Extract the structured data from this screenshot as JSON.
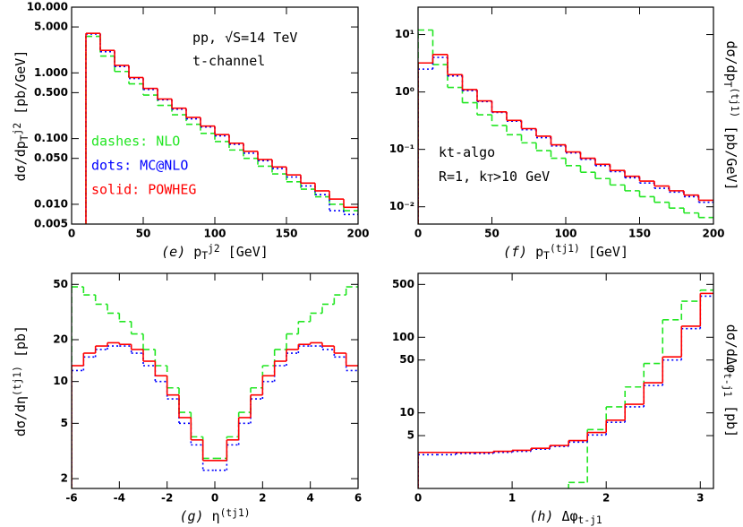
{
  "chart_data": [
    {
      "type": "histogram",
      "log_y": true,
      "legend": "lower left",
      "y_label_side": "left",
      "x_label": [
        {
          "text": "(e)",
          "style": "italic"
        },
        {
          "text": " p"
        },
        {
          "text": "T",
          "pos": "sub"
        },
        {
          "text": "j2",
          "pos": "sup"
        },
        {
          "text": " [GeV]"
        }
      ],
      "y_label": [
        {
          "text": "dσ/dp"
        },
        {
          "text": "T",
          "pos": "sub"
        },
        {
          "text": "j2",
          "pos": "sup"
        },
        {
          "text": " [pb/GeV]"
        }
      ],
      "annotations": [
        [
          {
            "text": "pp, √S=14 TeV"
          }
        ],
        [
          {
            "text": "t-channel"
          }
        ]
      ],
      "xlim": [
        0,
        200
      ],
      "xticks": [
        0,
        50,
        100,
        150,
        200
      ],
      "ylim": [
        0.005,
        10
      ],
      "yticks": [
        0.005,
        {
          "value": 0.01,
          "label": "0.010"
        },
        {
          "value": 0.05,
          "label": "0.050"
        },
        {
          "value": 0.1,
          "label": "0.100"
        },
        {
          "value": 0.5,
          "label": "0.500"
        },
        {
          "value": 1,
          "label": "1.000"
        },
        {
          "value": 5,
          "label": "5.000"
        },
        {
          "value": 10,
          "label": "10.000"
        }
      ],
      "bins": [
        10,
        20,
        30,
        40,
        50,
        60,
        70,
        80,
        90,
        100,
        110,
        120,
        130,
        140,
        150,
        160,
        170,
        180,
        190,
        200
      ],
      "series": [
        {
          "name": "dashes: NLO",
          "color": "#22e622",
          "dash": "dashed",
          "values": [
            3.6,
            1.8,
            1.05,
            0.68,
            0.46,
            0.32,
            0.23,
            0.165,
            0.12,
            0.09,
            0.067,
            0.05,
            0.038,
            0.029,
            0.022,
            0.017,
            0.013,
            0.01,
            0.008
          ]
        },
        {
          "name": "dots: MC@NLO",
          "color": "#0000ff",
          "dash": "dotted",
          "values": [
            3.9,
            2.1,
            1.25,
            0.82,
            0.56,
            0.39,
            0.28,
            0.2,
            0.15,
            0.11,
            0.082,
            0.06,
            0.046,
            0.035,
            0.026,
            0.019,
            0.014,
            0.008,
            0.007
          ]
        },
        {
          "name": "solid: POWHEG",
          "color": "#ff0000",
          "dash": "solid",
          "values": [
            4.0,
            2.2,
            1.3,
            0.85,
            0.58,
            0.4,
            0.29,
            0.21,
            0.155,
            0.115,
            0.085,
            0.064,
            0.048,
            0.037,
            0.028,
            0.021,
            0.016,
            0.012,
            0.009
          ]
        }
      ]
    },
    {
      "type": "histogram",
      "log_y": true,
      "y_label_side": "right",
      "x_label": [
        {
          "text": "(f)",
          "style": "italic"
        },
        {
          "text": " p"
        },
        {
          "text": "T",
          "pos": "sub"
        },
        {
          "text": "(tj1)",
          "pos": "sup"
        },
        {
          "text": " [GeV]"
        }
      ],
      "y_label": [
        {
          "text": "dσ/dp"
        },
        {
          "text": "T",
          "pos": "sub"
        },
        {
          "text": "(tj1)",
          "pos": "sup"
        },
        {
          "text": " [pb/GeV]"
        }
      ],
      "annotations": [
        [
          {
            "text": "kt-algo"
          }
        ],
        [
          {
            "text": "R=1, k"
          },
          {
            "text": "T",
            "pos": "sub"
          },
          {
            "text": ">10 GeV"
          }
        ]
      ],
      "xlim": [
        0,
        200
      ],
      "xticks": [
        0,
        50,
        100,
        150,
        200
      ],
      "ylim": [
        0.005,
        30
      ],
      "yticks": [
        {
          "value": 0.01,
          "label": "10⁻²"
        },
        {
          "value": 0.1,
          "label": "10⁻¹"
        },
        {
          "value": 1,
          "label": "10⁰"
        },
        {
          "value": 10,
          "label": "10¹"
        }
      ],
      "bins": [
        0,
        10,
        20,
        30,
        40,
        50,
        60,
        70,
        80,
        90,
        100,
        110,
        120,
        130,
        140,
        150,
        160,
        170,
        180,
        190,
        200
      ],
      "series": [
        {
          "color": "#22e622",
          "dash": "dashed",
          "values": [
            12,
            3.0,
            1.2,
            0.65,
            0.4,
            0.26,
            0.18,
            0.13,
            0.095,
            0.07,
            0.052,
            0.04,
            0.031,
            0.024,
            0.019,
            0.015,
            0.012,
            0.0095,
            0.0078,
            0.0065
          ]
        },
        {
          "color": "#0000ff",
          "dash": "dotted",
          "values": [
            2.5,
            4.0,
            1.9,
            1.05,
            0.68,
            0.44,
            0.31,
            0.22,
            0.16,
            0.115,
            0.087,
            0.067,
            0.052,
            0.041,
            0.032,
            0.026,
            0.021,
            0.018,
            0.015,
            0.012
          ]
        },
        {
          "color": "#ff0000",
          "dash": "solid",
          "values": [
            3.2,
            4.5,
            2.0,
            1.1,
            0.7,
            0.45,
            0.32,
            0.23,
            0.17,
            0.12,
            0.09,
            0.07,
            0.055,
            0.043,
            0.034,
            0.028,
            0.023,
            0.019,
            0.016,
            0.013
          ]
        }
      ]
    },
    {
      "type": "histogram",
      "log_y": true,
      "y_label_side": "left",
      "x_label": [
        {
          "text": "(g)",
          "style": "italic"
        },
        {
          "text": " η"
        },
        {
          "text": "(tj1)",
          "pos": "sup"
        }
      ],
      "y_label": [
        {
          "text": "dσ/dη"
        },
        {
          "text": "(tj1)",
          "pos": "sup"
        },
        {
          "text": " [pb]"
        }
      ],
      "xlim": [
        -6,
        6
      ],
      "xticks": [
        -6,
        -4,
        -2,
        0,
        2,
        4,
        6
      ],
      "ylim": [
        1.7,
        60
      ],
      "yticks": [
        2,
        5,
        10,
        20,
        50
      ],
      "bins": [
        -6,
        -5.5,
        -5,
        -4.5,
        -4,
        -3.5,
        -3,
        -2.5,
        -2,
        -1.5,
        -1,
        -0.5,
        0,
        0.5,
        1,
        1.5,
        2,
        2.5,
        3,
        3.5,
        4,
        4.5,
        5,
        5.5,
        6
      ],
      "series": [
        {
          "color": "#22e622",
          "dash": "dashed",
          "values": [
            48,
            42,
            36,
            31,
            27,
            22,
            17,
            13,
            9,
            6,
            4,
            2.8,
            2.8,
            4,
            6,
            9,
            13,
            17,
            22,
            27,
            31,
            36,
            42,
            48
          ]
        },
        {
          "color": "#0000ff",
          "dash": "dotted",
          "values": [
            12,
            15,
            17,
            18,
            18,
            16,
            13,
            10,
            7.5,
            5,
            3.5,
            2.3,
            2.3,
            3.5,
            5,
            7.5,
            10,
            13,
            16,
            18,
            18,
            17,
            15,
            12
          ]
        },
        {
          "color": "#ff0000",
          "dash": "solid",
          "values": [
            13,
            16,
            18,
            19,
            18.5,
            17,
            14,
            11,
            8,
            5.5,
            3.8,
            2.7,
            2.7,
            3.8,
            5.5,
            8,
            11,
            14,
            17,
            18.5,
            19,
            18,
            16,
            13
          ]
        }
      ]
    },
    {
      "type": "histogram",
      "log_y": true,
      "y_label_side": "right",
      "x_label": [
        {
          "text": "(h)",
          "style": "italic"
        },
        {
          "text": " Δφ"
        },
        {
          "text": "t-j1",
          "pos": "sub"
        }
      ],
      "y_label": [
        {
          "text": "dσ/dΔφ"
        },
        {
          "text": "t-j1",
          "pos": "sub"
        },
        {
          "text": " [pb]"
        }
      ],
      "xlim": [
        0,
        3.14
      ],
      "xticks": [
        0,
        1,
        2,
        3
      ],
      "ylim": [
        1,
        700
      ],
      "yticks": [
        5,
        10,
        50,
        100,
        500
      ],
      "bins": [
        0,
        0.2,
        0.4,
        0.6,
        0.8,
        1.0,
        1.2,
        1.4,
        1.6,
        1.8,
        2.0,
        2.2,
        2.4,
        2.6,
        2.8,
        3.0,
        3.14
      ],
      "series": [
        {
          "color": "#22e622",
          "dash": "dashed",
          "values": [
            null,
            null,
            null,
            null,
            null,
            null,
            null,
            null,
            1.2,
            6,
            12,
            22,
            45,
            170,
            300,
            420
          ]
        },
        {
          "color": "#0000ff",
          "dash": "dotted",
          "values": [
            2.8,
            2.8,
            2.9,
            2.9,
            3.0,
            3.1,
            3.3,
            3.6,
            4.1,
            5.1,
            7.5,
            12,
            23,
            50,
            130,
            350
          ]
        },
        {
          "color": "#ff0000",
          "dash": "solid",
          "values": [
            3.0,
            3.0,
            3.0,
            3.0,
            3.1,
            3.2,
            3.4,
            3.7,
            4.3,
            5.5,
            8,
            13,
            25,
            55,
            140,
            380
          ]
        }
      ]
    }
  ]
}
